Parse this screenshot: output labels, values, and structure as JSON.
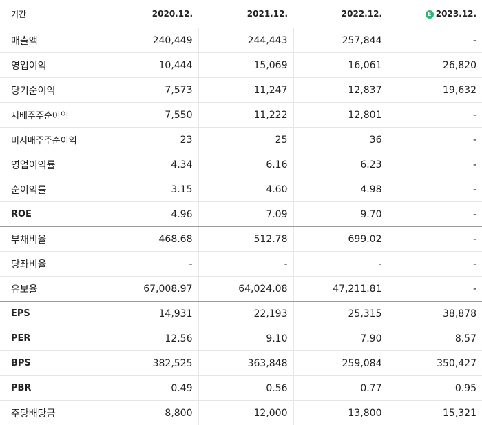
{
  "header": {
    "label": "기간",
    "years": [
      "2020.12.",
      "2021.12.",
      "2022.12.",
      "2023.12."
    ],
    "estimate_badge": "E"
  },
  "colors": {
    "estimate_badge": "#2bb673"
  },
  "rows": [
    {
      "label": "매출액",
      "values": [
        "240,449",
        "244,443",
        "257,844",
        "-"
      ]
    },
    {
      "label": "영업이익",
      "values": [
        "10,444",
        "15,069",
        "16,061",
        "26,820"
      ]
    },
    {
      "label": "당기순이익",
      "values": [
        "7,573",
        "11,247",
        "12,837",
        "19,632"
      ]
    },
    {
      "label": "지배주주순이익",
      "values": [
        "7,550",
        "11,222",
        "12,801",
        "-"
      ]
    },
    {
      "label": "비지배주주순이익",
      "values": [
        "23",
        "25",
        "36",
        "-"
      ]
    },
    {
      "label": "영업이익률",
      "values": [
        "4.34",
        "6.16",
        "6.23",
        "-"
      ]
    },
    {
      "label": "순이익률",
      "values": [
        "3.15",
        "4.60",
        "4.98",
        "-"
      ]
    },
    {
      "label": "ROE",
      "values": [
        "4.96",
        "7.09",
        "9.70",
        "-"
      ]
    },
    {
      "label": "부채비율",
      "values": [
        "468.68",
        "512.78",
        "699.02",
        "-"
      ]
    },
    {
      "label": "당좌비율",
      "values": [
        "-",
        "-",
        "-",
        "-"
      ]
    },
    {
      "label": "유보율",
      "values": [
        "67,008.97",
        "64,024.08",
        "47,211.81",
        "-"
      ]
    },
    {
      "label": "EPS",
      "values": [
        "14,931",
        "22,193",
        "25,315",
        "38,878"
      ]
    },
    {
      "label": "PER",
      "values": [
        "12.56",
        "9.10",
        "7.90",
        "8.57"
      ]
    },
    {
      "label": "BPS",
      "values": [
        "382,525",
        "363,848",
        "259,084",
        "350,427"
      ]
    },
    {
      "label": "PBR",
      "values": [
        "0.49",
        "0.56",
        "0.77",
        "0.95"
      ]
    },
    {
      "label": "주당배당금",
      "values": [
        "8,800",
        "12,000",
        "13,800",
        "15,321"
      ]
    }
  ]
}
